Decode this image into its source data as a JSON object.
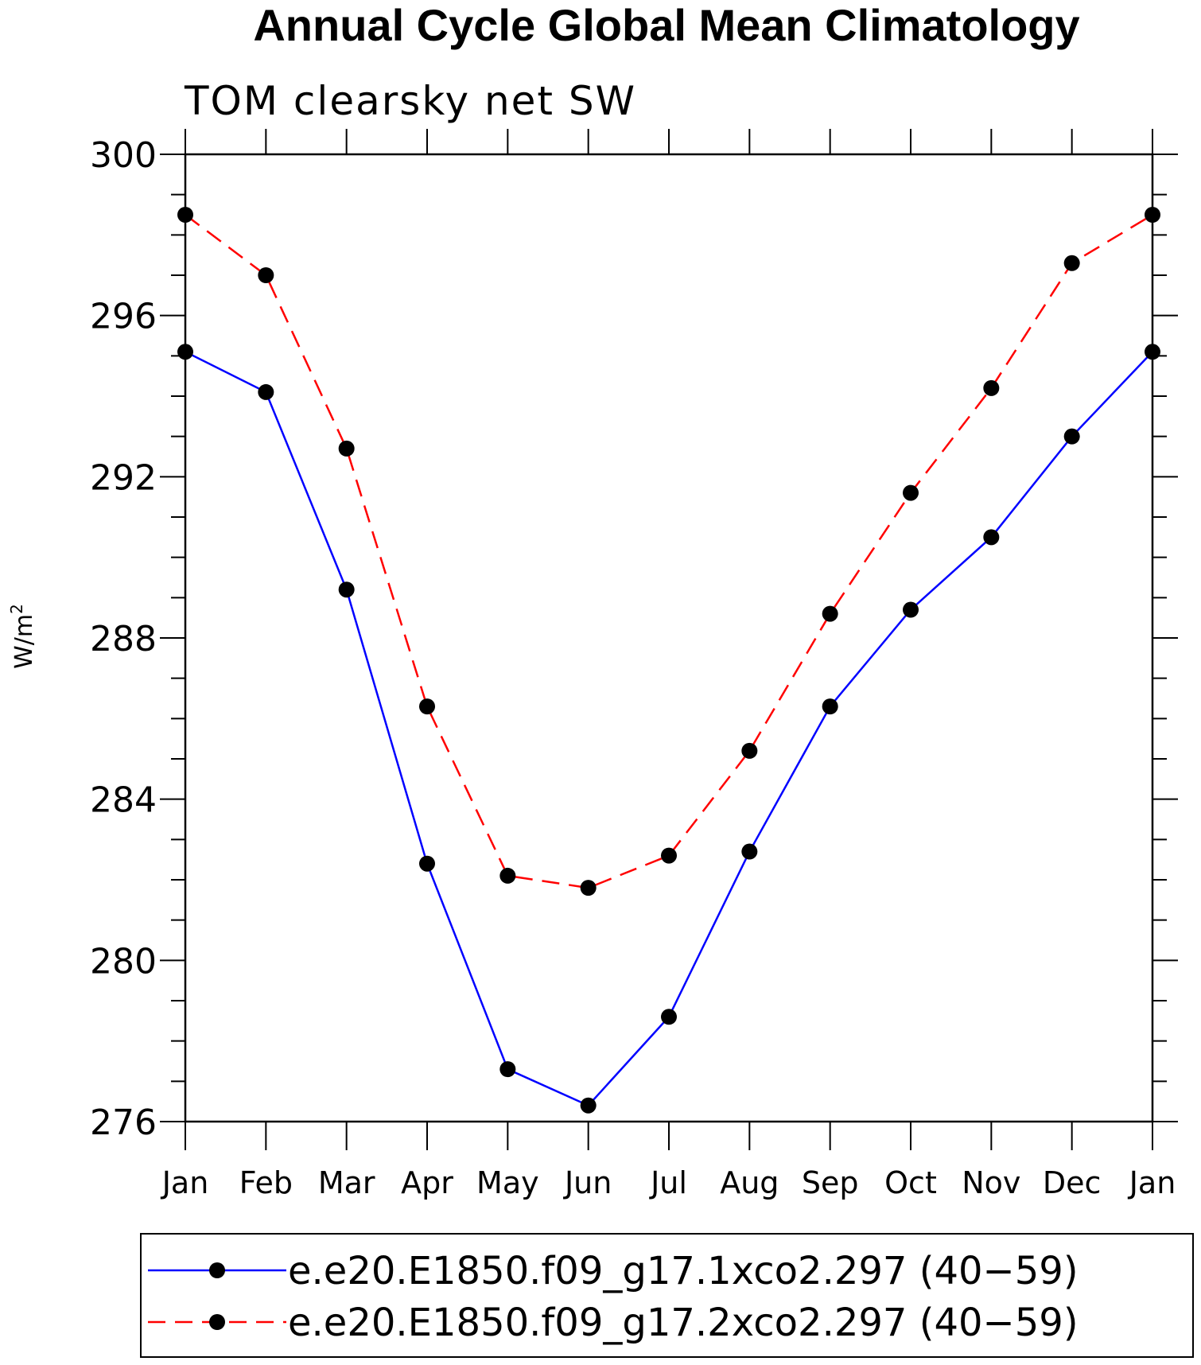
{
  "chart_data": {
    "type": "line",
    "title": "Annual Cycle Global Mean Climatology",
    "subtitle": "TOM clearsky net SW",
    "ylabel": "W/m",
    "ylabel_sup": "2",
    "xlabel": "",
    "categories": [
      "Jan",
      "Feb",
      "Mar",
      "Apr",
      "May",
      "Jun",
      "Jul",
      "Aug",
      "Sep",
      "Oct",
      "Nov",
      "Dec",
      "Jan"
    ],
    "ylim": [
      276,
      300
    ],
    "yticks": [
      276,
      280,
      284,
      288,
      292,
      296,
      300
    ],
    "ytick_labels": [
      "276",
      "280",
      "284",
      "288",
      "292",
      "296",
      "300"
    ],
    "grid": false,
    "legend_position": "bottom",
    "series": [
      {
        "name": "e.e20.E1850.f09_g17.1xco2.297 (40−59)",
        "color": "#0000ff",
        "dash": "solid",
        "marker": "filled-circle",
        "values": [
          295.1,
          294.1,
          289.2,
          282.4,
          277.3,
          276.4,
          278.6,
          282.7,
          286.3,
          288.7,
          290.5,
          293.0,
          295.1
        ]
      },
      {
        "name": "e.e20.E1850.f09_g17.2xco2.297 (40−59)",
        "color": "#ff0000",
        "dash": "dashed",
        "marker": "filled-circle",
        "values": [
          298.5,
          297.0,
          292.7,
          286.3,
          282.1,
          281.8,
          282.6,
          285.2,
          288.6,
          291.6,
          294.2,
          297.3,
          298.5
        ]
      }
    ]
  }
}
